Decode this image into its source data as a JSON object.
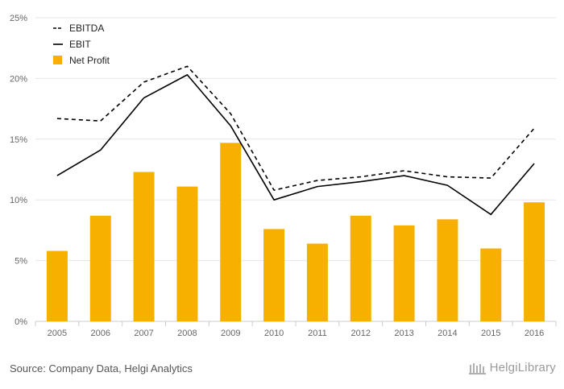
{
  "chart_data": {
    "type": "bar",
    "categories": [
      "2005",
      "2006",
      "2007",
      "2008",
      "2009",
      "2010",
      "2011",
      "2012",
      "2013",
      "2014",
      "2015",
      "2016"
    ],
    "series": [
      {
        "name": "EBITDA",
        "kind": "line",
        "style": "dashed",
        "color": "#000000",
        "values": [
          16.7,
          16.5,
          19.7,
          21.0,
          17.1,
          10.8,
          11.6,
          11.9,
          12.4,
          11.9,
          11.8,
          15.9
        ]
      },
      {
        "name": "EBIT",
        "kind": "line",
        "style": "solid",
        "color": "#000000",
        "values": [
          12.0,
          14.1,
          18.4,
          20.3,
          16.1,
          10.0,
          11.1,
          11.5,
          12.0,
          11.2,
          8.8,
          13.0
        ]
      },
      {
        "name": "Net Profit",
        "kind": "bar",
        "color": "#f7b000",
        "values": [
          5.8,
          8.7,
          12.3,
          11.1,
          14.7,
          7.6,
          6.4,
          8.7,
          7.9,
          8.4,
          6.0,
          9.8
        ]
      }
    ],
    "y_ticks": [
      "0%",
      "5%",
      "10%",
      "15%",
      "20%",
      "25%"
    ],
    "ylim": [
      0,
      25
    ],
    "grid": true,
    "legend": "top-left"
  },
  "footer": {
    "source": "Source: Company Data, Helgi Analytics",
    "brand": "HelgiLibrary"
  }
}
